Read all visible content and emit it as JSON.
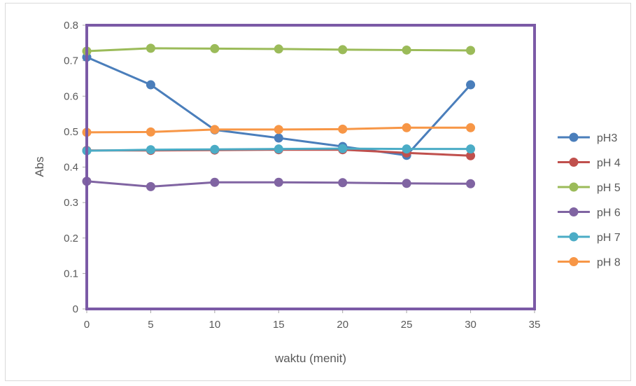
{
  "chart_data": {
    "type": "line",
    "title": "",
    "xlabel": "waktu (menit)",
    "ylabel": "Abs",
    "xlim": [
      0,
      35
    ],
    "ylim": [
      0,
      0.8
    ],
    "x_ticks": [
      "0",
      "5",
      "10",
      "15",
      "20",
      "25",
      "30",
      "35"
    ],
    "y_ticks": [
      "0",
      "0.1",
      "0.2",
      "0.3",
      "0.4",
      "0.5",
      "0.6",
      "0.7",
      "0.8"
    ],
    "x": [
      0,
      5,
      10,
      15,
      20,
      25,
      30
    ],
    "grid": false,
    "legend_position": "right",
    "plot_border_color": "#7b5aa6",
    "series": [
      {
        "name": "pH3",
        "color": "#4a7ebb",
        "values": [
          0.71,
          0.632,
          0.505,
          0.482,
          0.458,
          0.433,
          0.632
        ]
      },
      {
        "name": "pH 4",
        "color": "#c0504d",
        "values": [
          0.447,
          0.447,
          0.448,
          0.449,
          0.449,
          0.44,
          0.432
        ]
      },
      {
        "name": "pH 5",
        "color": "#9bbb59",
        "values": [
          0.727,
          0.735,
          0.734,
          0.733,
          0.731,
          0.73,
          0.729
        ]
      },
      {
        "name": "pH 6",
        "color": "#8064a2",
        "values": [
          0.36,
          0.345,
          0.357,
          0.357,
          0.356,
          0.354,
          0.353
        ]
      },
      {
        "name": "pH 7",
        "color": "#4bacc6",
        "values": [
          0.446,
          0.449,
          0.45,
          0.451,
          0.452,
          0.451,
          0.451
        ]
      },
      {
        "name": "pH 8",
        "color": "#f79646",
        "values": [
          0.498,
          0.499,
          0.506,
          0.506,
          0.507,
          0.511,
          0.511
        ]
      }
    ]
  }
}
